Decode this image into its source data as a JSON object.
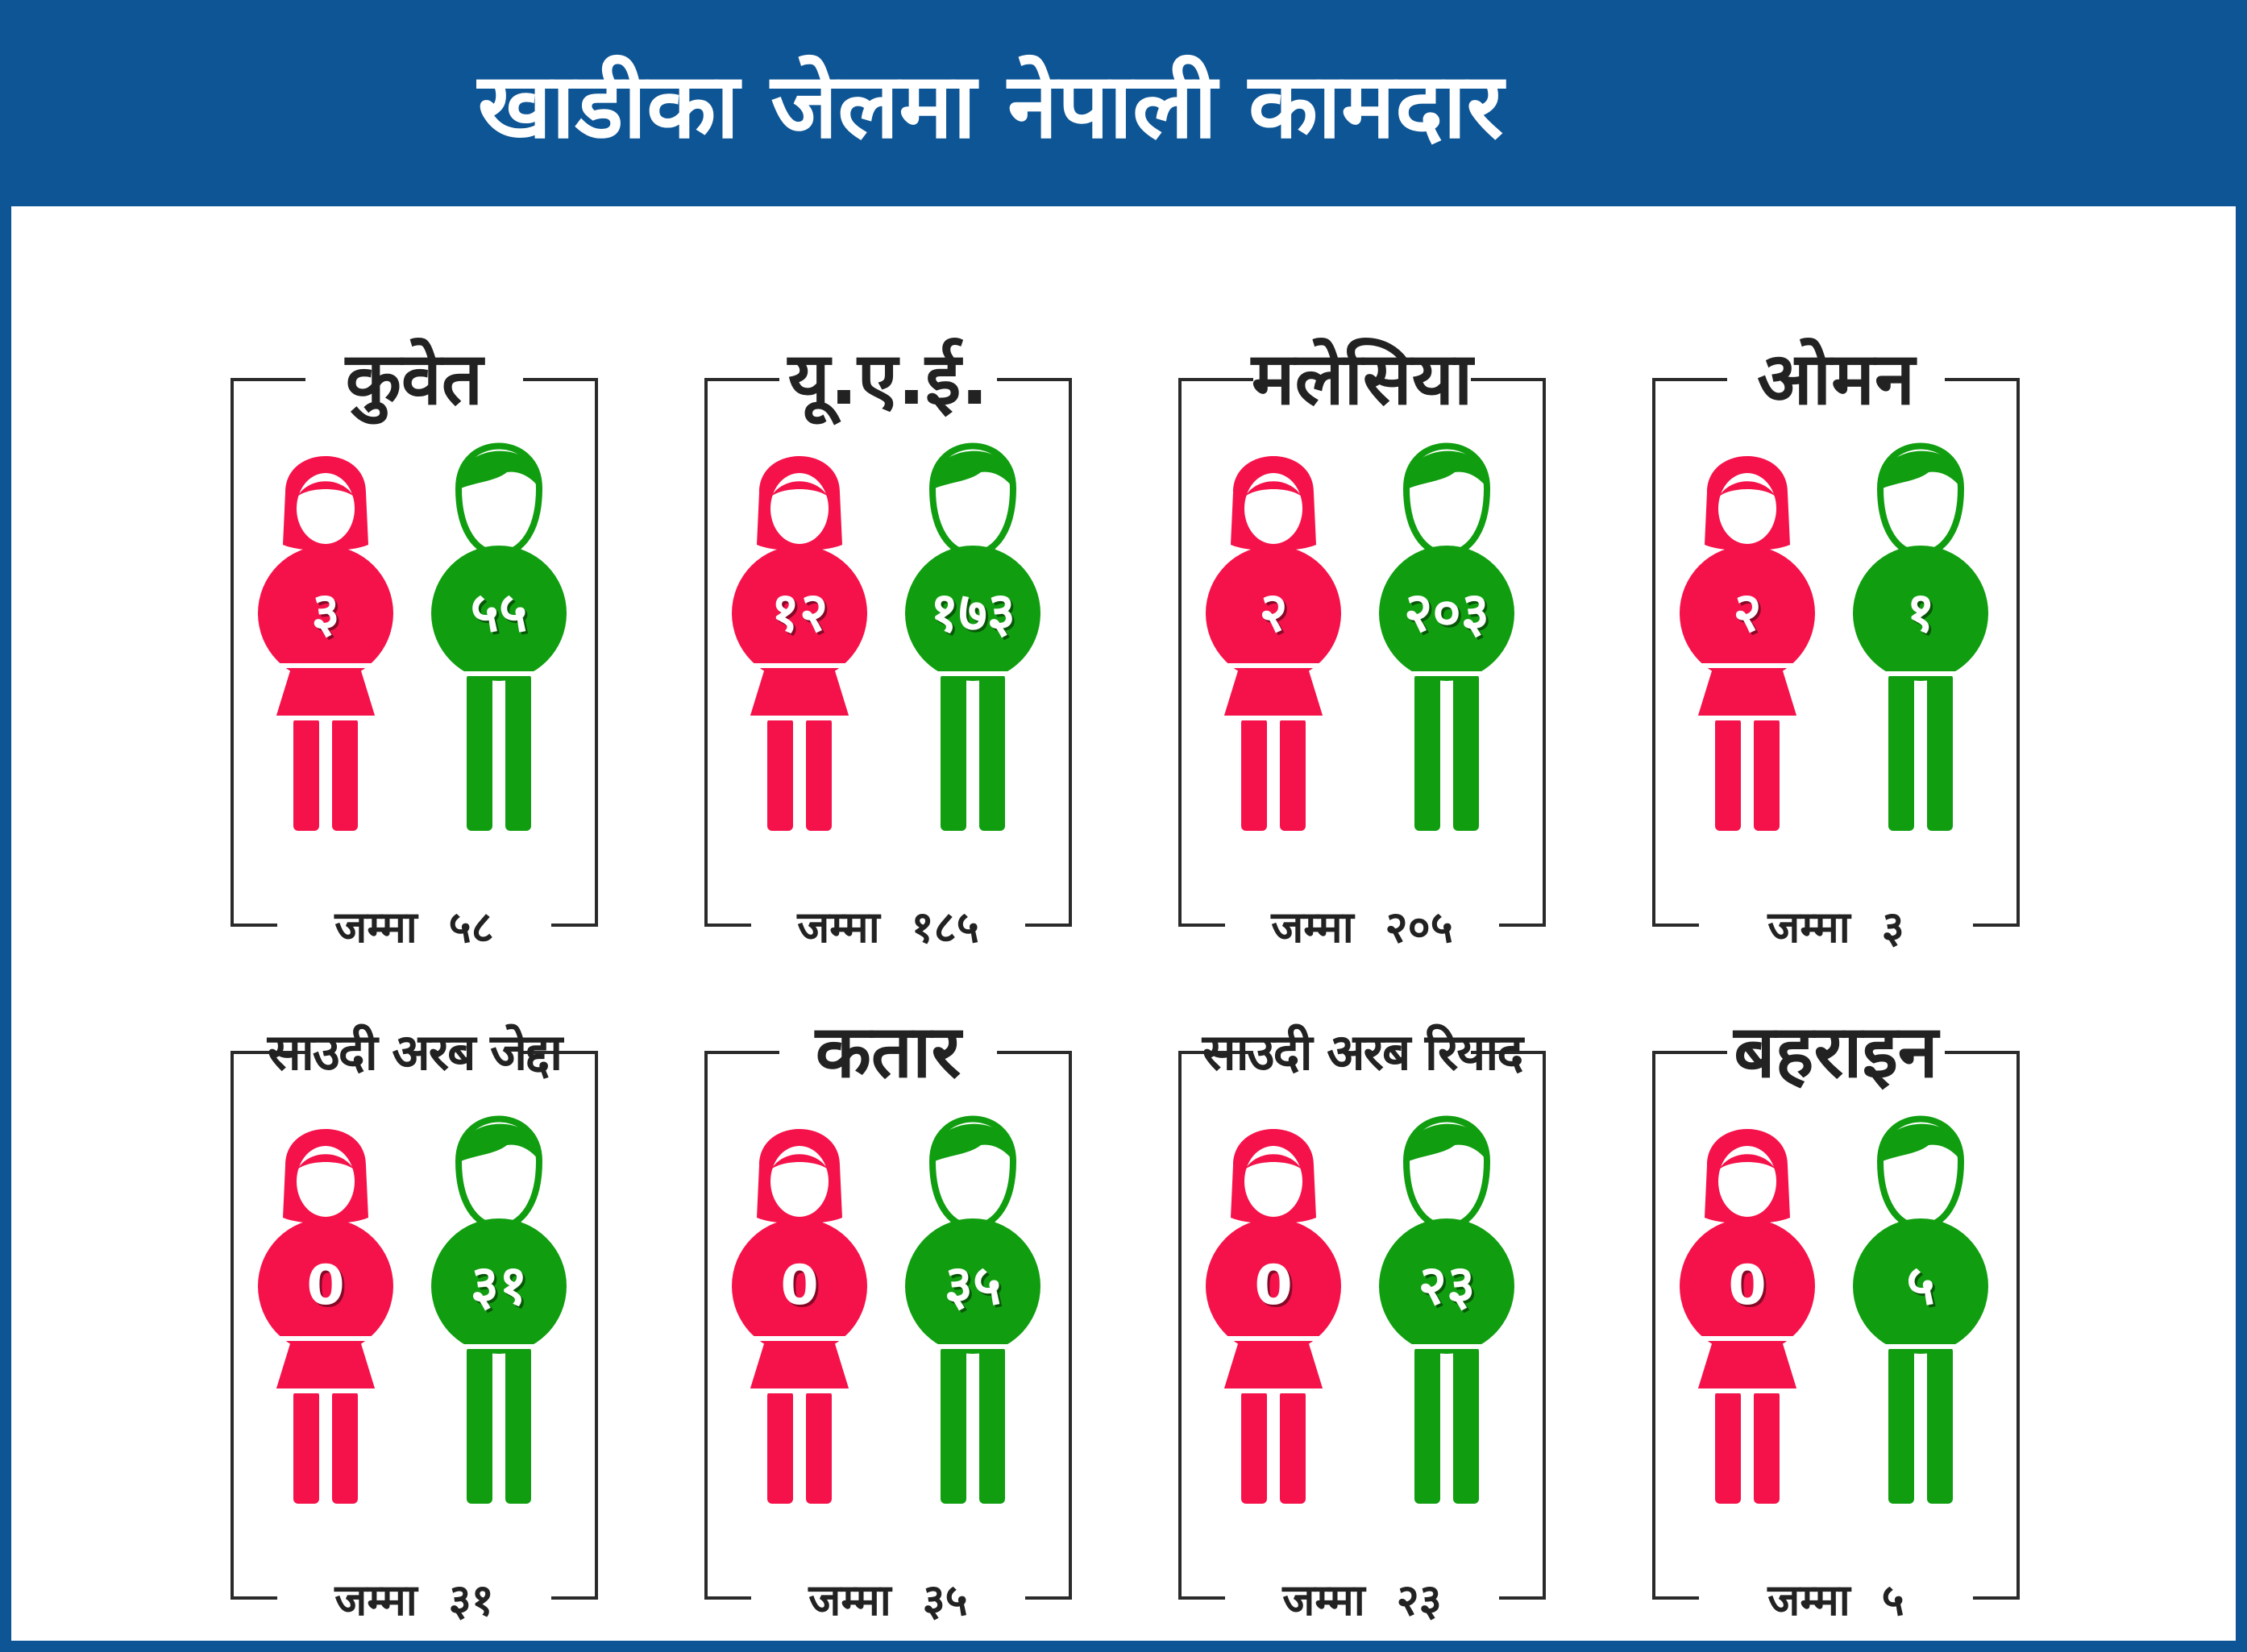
{
  "title": "खाडीका जेलमा नेपाली कामदार",
  "colors": {
    "female": "#f5124a",
    "male": "#109e10",
    "header": "#0d5595"
  },
  "total_label": "जम्मा",
  "countries": [
    {
      "name": "कुवेत",
      "female": "३",
      "male": "५५",
      "total": "५८"
    },
    {
      "name": "यू.ए.ई.",
      "female": "१२",
      "male": "१७३",
      "total": "१८५"
    },
    {
      "name": "मलेसिया",
      "female": "२",
      "male": "२०३",
      "total": "२०५"
    },
    {
      "name": "ओमन",
      "female": "२",
      "male": "१",
      "total": "३"
    },
    {
      "name": "साउदी अरब जेद्दा",
      "female": "0",
      "male": "३१",
      "total": "३१"
    },
    {
      "name": "कतार",
      "female": "0",
      "male": "३५",
      "total": "३५"
    },
    {
      "name": "साउदी अरब रियाद",
      "female": "0",
      "male": "२३",
      "total": "२३"
    },
    {
      "name": "बहराइन",
      "female": "0",
      "male": "५",
      "total": "५"
    }
  ]
}
